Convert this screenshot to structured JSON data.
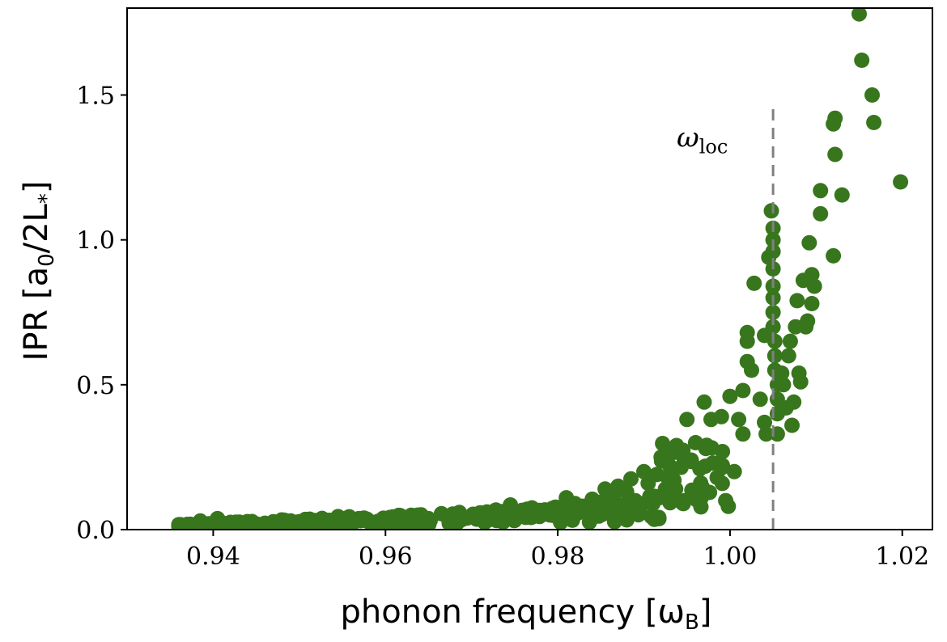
{
  "chart_data": {
    "type": "scatter",
    "xlabel": "phonon frequency [ω",
    "xlabel_sub": "B",
    "xlabel_close": "]",
    "ylabel": "IPR [a",
    "ylabel_sub": "0",
    "ylabel_rest": "/2L",
    "ylabel_sub2": "*",
    "ylabel_close": "]",
    "xlim": [
      0.93,
      1.0235
    ],
    "ylim": [
      0.0,
      1.8
    ],
    "x_ticks": [
      0.94,
      0.96,
      0.98,
      1.0,
      1.02
    ],
    "x_tick_labels": [
      "0.94",
      "0.96",
      "0.98",
      "1.00",
      "1.02"
    ],
    "y_ticks": [
      0.0,
      0.5,
      1.0,
      1.5
    ],
    "y_tick_labels": [
      "0.0",
      "0.5",
      "1.0",
      "1.5"
    ],
    "marker_color": "#38761d",
    "vline": {
      "x": 1.005,
      "y_range": [
        0.0,
        1.46
      ],
      "color": "#808080",
      "style": "dashed"
    },
    "annotation": {
      "text": "ω",
      "sub": "loc",
      "x": 0.9985,
      "y": 1.35
    },
    "grid": false,
    "points": [
      [
        0.936,
        0.012
      ],
      [
        0.937,
        0.018
      ],
      [
        0.9385,
        0.03
      ],
      [
        0.9395,
        0.02
      ],
      [
        0.9405,
        0.038
      ],
      [
        0.942,
        0.025
      ],
      [
        0.9435,
        0.015
      ],
      [
        0.9445,
        0.028
      ],
      [
        0.946,
        0.022
      ],
      [
        0.9475,
        0.018
      ],
      [
        0.949,
        0.03
      ],
      [
        0.9505,
        0.025
      ],
      [
        0.952,
        0.02
      ],
      [
        0.9535,
        0.032
      ],
      [
        0.9545,
        0.045
      ],
      [
        0.956,
        0.028
      ],
      [
        0.9575,
        0.04
      ],
      [
        0.959,
        0.022
      ],
      [
        0.9605,
        0.042
      ],
      [
        0.962,
        0.03
      ],
      [
        0.9635,
        0.048
      ],
      [
        0.965,
        0.038
      ],
      [
        0.9665,
        0.055
      ],
      [
        0.968,
        0.045
      ],
      [
        0.9695,
        0.04
      ],
      [
        0.971,
        0.058
      ],
      [
        0.972,
        0.05
      ],
      [
        0.9735,
        0.062
      ],
      [
        0.9745,
        0.085
      ],
      [
        0.9755,
        0.055
      ],
      [
        0.977,
        0.075
      ],
      [
        0.9785,
        0.068
      ],
      [
        0.98,
        0.07
      ],
      [
        0.981,
        0.11
      ],
      [
        0.982,
        0.09
      ],
      [
        0.983,
        0.08
      ],
      [
        0.984,
        0.105
      ],
      [
        0.985,
        0.095
      ],
      [
        0.9855,
        0.14
      ],
      [
        0.9865,
        0.12
      ],
      [
        0.987,
        0.15
      ],
      [
        0.988,
        0.13
      ],
      [
        0.9885,
        0.175
      ],
      [
        0.989,
        0.1
      ],
      [
        0.99,
        0.2
      ],
      [
        0.9905,
        0.16
      ],
      [
        0.9915,
        0.19
      ],
      [
        0.992,
        0.25
      ],
      [
        0.9925,
        0.14
      ],
      [
        0.993,
        0.22
      ],
      [
        0.9935,
        0.17
      ],
      [
        0.9945,
        0.26
      ],
      [
        0.995,
        0.38
      ],
      [
        0.9955,
        0.24
      ],
      [
        0.996,
        0.3
      ],
      [
        0.9965,
        0.21
      ],
      [
        0.997,
        0.44
      ],
      [
        0.9972,
        0.28
      ],
      [
        0.9978,
        0.38
      ],
      [
        0.998,
        0.23
      ],
      [
        0.9985,
        0.18
      ],
      [
        0.999,
        0.39
      ],
      [
        0.9995,
        0.1
      ],
      [
        0.9998,
        0.08
      ],
      [
        1.0,
        0.46
      ],
      [
        1.0005,
        0.2
      ],
      [
        1.001,
        0.38
      ],
      [
        1.0015,
        0.33
      ],
      [
        1.0015,
        0.48
      ],
      [
        1.002,
        0.58
      ],
      [
        1.002,
        0.65
      ],
      [
        1.002,
        0.68
      ],
      [
        1.0025,
        0.55
      ],
      [
        1.0028,
        0.85
      ],
      [
        1.0035,
        0.45
      ],
      [
        1.004,
        0.37
      ],
      [
        1.004,
        0.67
      ],
      [
        1.0042,
        0.33
      ],
      [
        1.0045,
        0.94
      ],
      [
        1.0048,
        1.1
      ],
      [
        1.005,
        1.04
      ],
      [
        1.005,
        1.0
      ],
      [
        1.005,
        0.96
      ],
      [
        1.005,
        0.9
      ],
      [
        1.005,
        0.84
      ],
      [
        1.005,
        0.8
      ],
      [
        1.005,
        0.75
      ],
      [
        1.005,
        0.7
      ],
      [
        1.0052,
        0.65
      ],
      [
        1.0052,
        0.6
      ],
      [
        1.0052,
        0.55
      ],
      [
        1.0055,
        0.5
      ],
      [
        1.0055,
        0.45
      ],
      [
        1.0055,
        0.4
      ],
      [
        1.0055,
        0.33
      ],
      [
        1.006,
        0.54
      ],
      [
        1.0062,
        0.5
      ],
      [
        1.0065,
        0.42
      ],
      [
        1.0068,
        0.6
      ],
      [
        1.007,
        0.65
      ],
      [
        1.0072,
        0.36
      ],
      [
        1.0074,
        0.44
      ],
      [
        1.0076,
        0.7
      ],
      [
        1.0078,
        0.79
      ],
      [
        1.008,
        0.54
      ],
      [
        1.0082,
        0.51
      ],
      [
        1.0085,
        0.86
      ],
      [
        1.0088,
        0.7
      ],
      [
        1.009,
        0.72
      ],
      [
        1.0092,
        0.99
      ],
      [
        1.0095,
        0.88
      ],
      [
        1.0095,
        0.78
      ],
      [
        1.0098,
        0.84
      ],
      [
        1.0105,
        1.09
      ],
      [
        1.0105,
        1.17
      ],
      [
        1.012,
        0.945
      ],
      [
        1.012,
        1.4
      ],
      [
        1.0122,
        1.42
      ],
      [
        1.0122,
        1.295
      ],
      [
        1.013,
        1.155
      ],
      [
        1.015,
        1.78
      ],
      [
        1.0153,
        1.62
      ],
      [
        1.0165,
        1.5
      ],
      [
        1.0167,
        1.405
      ],
      [
        1.0198,
        1.2
      ]
    ]
  }
}
